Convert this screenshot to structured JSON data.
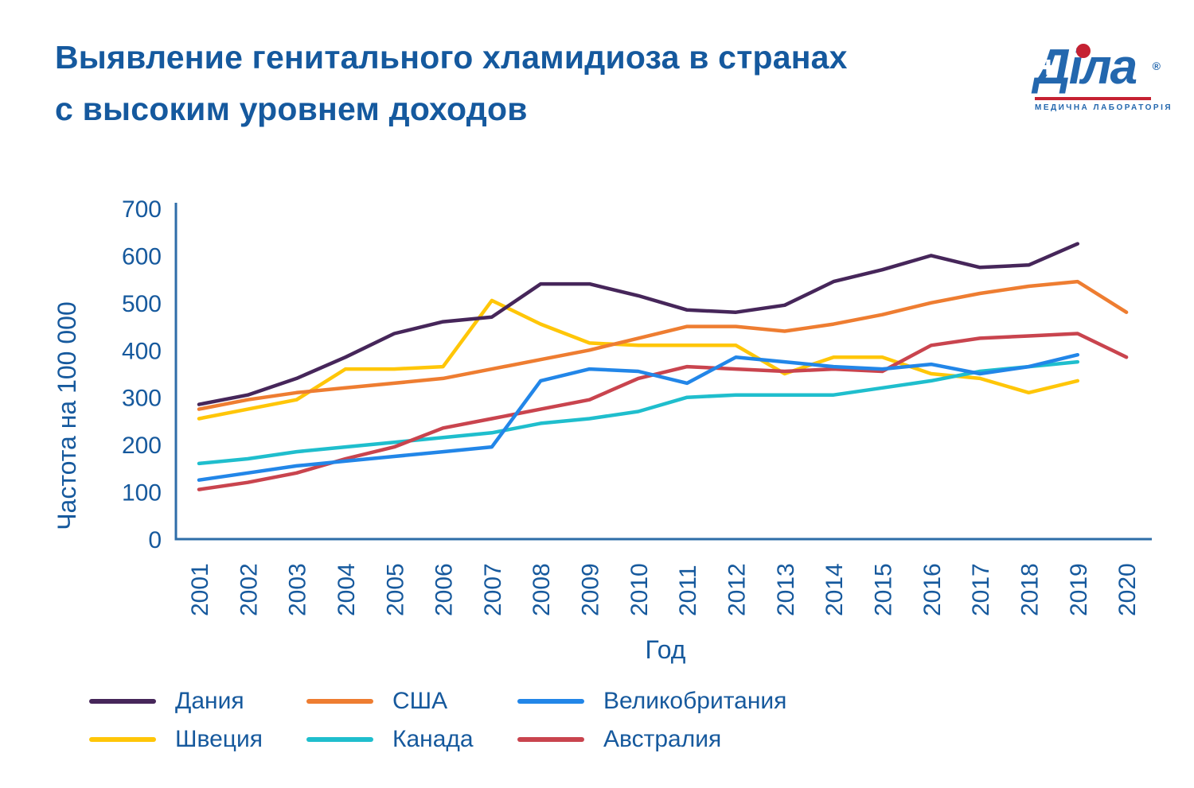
{
  "header": {
    "title_line1": "Выявление генитального хламидиоза в странах",
    "title_line2": "с высоким уровнем доходов"
  },
  "logo": {
    "brand": "Діла",
    "registered": "®",
    "tagline": "МЕДИЧНА ЛАБОРАТОРІЯ",
    "brand_color": "#2367AE",
    "accent_red": "#C52132"
  },
  "axis_style": {
    "line_color": "#2E6DA8",
    "label_color": "#16599D"
  },
  "chart_data": {
    "type": "line",
    "title": "Выявление генитального хламидиоза в странах с высоким уровнем доходов",
    "xlabel": "Год",
    "ylabel": "Частота на 100 000",
    "x": [
      2001,
      2002,
      2003,
      2004,
      2005,
      2006,
      2007,
      2008,
      2009,
      2010,
      2011,
      2012,
      2013,
      2014,
      2015,
      2016,
      2017,
      2018,
      2019,
      2020
    ],
    "ylim": [
      0,
      700
    ],
    "yticks": [
      0,
      100,
      200,
      300,
      400,
      500,
      600,
      700
    ],
    "grid": false,
    "legend_position": "bottom",
    "series": [
      {
        "name": "Дания",
        "color": "#46265A",
        "values": [
          285,
          305,
          340,
          385,
          435,
          460,
          470,
          540,
          540,
          515,
          485,
          480,
          495,
          545,
          570,
          600,
          575,
          580,
          625,
          null
        ]
      },
      {
        "name": "США",
        "color": "#EE7D31",
        "values": [
          275,
          295,
          310,
          320,
          330,
          340,
          360,
          380,
          400,
          425,
          450,
          450,
          440,
          455,
          475,
          500,
          520,
          535,
          545,
          480
        ]
      },
      {
        "name": "Великобритания",
        "color": "#2286E8",
        "values": [
          125,
          140,
          155,
          165,
          175,
          185,
          195,
          335,
          360,
          355,
          330,
          385,
          375,
          365,
          360,
          370,
          350,
          365,
          390,
          null
        ]
      },
      {
        "name": "Швеция",
        "color": "#FFC608",
        "values": [
          255,
          275,
          295,
          360,
          360,
          365,
          505,
          455,
          415,
          410,
          410,
          410,
          350,
          385,
          385,
          350,
          340,
          310,
          335,
          null
        ]
      },
      {
        "name": "Канада",
        "color": "#1FBECD",
        "values": [
          160,
          170,
          185,
          195,
          205,
          215,
          225,
          245,
          255,
          270,
          300,
          305,
          305,
          305,
          320,
          335,
          355,
          365,
          375,
          null
        ]
      },
      {
        "name": "Австралия",
        "color": "#C9444E",
        "values": [
          105,
          120,
          140,
          170,
          195,
          235,
          255,
          275,
          295,
          340,
          365,
          360,
          355,
          360,
          355,
          410,
          425,
          430,
          435,
          385
        ]
      }
    ]
  }
}
